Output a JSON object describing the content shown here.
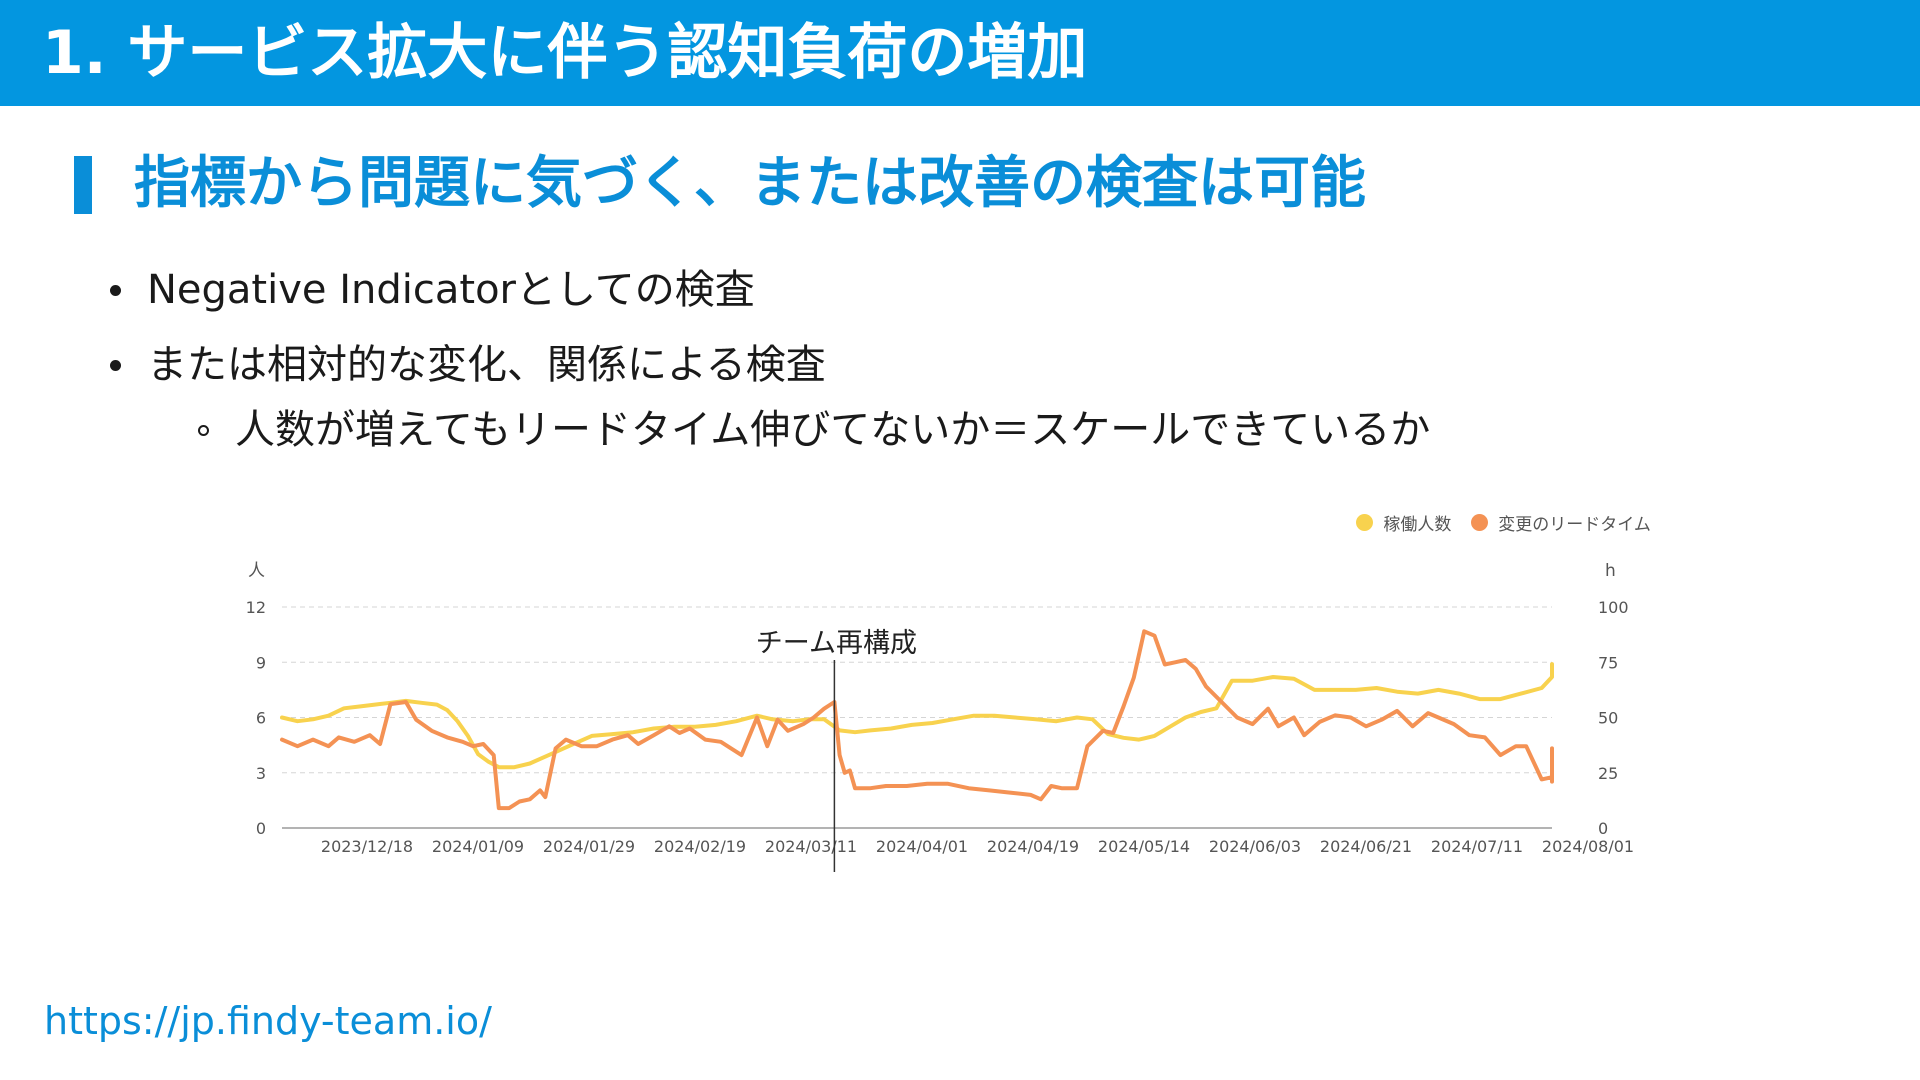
{
  "header": {
    "title": "1. サービス拡大に伴う認知負荷の増加"
  },
  "section": {
    "title": "指標から問題に気づく、または改善の検査は可能"
  },
  "bullets": [
    "Negative Indicatorとしての検査",
    "または相対的な変化、関係による検査"
  ],
  "sub_bullets": [
    "人数が増えてもリードタイム伸びてないか＝スケールできているか"
  ],
  "footer": {
    "url": "https://jp.findy-team.io/"
  },
  "chart_data": {
    "type": "line",
    "title": "",
    "annotation": "チーム再構成",
    "annotation_x": "2024/03/15",
    "x_tick_labels": [
      "2023/12/18",
      "2024/01/09",
      "2024/01/29",
      "2024/02/19",
      "2024/03/11",
      "2024/04/01",
      "2024/04/19",
      "2024/05/14",
      "2024/06/03",
      "2024/06/21",
      "2024/07/11",
      "2024/08/01"
    ],
    "y_left": {
      "unit": "人",
      "ticks": [
        0,
        3,
        6,
        9,
        12
      ],
      "lim": [
        0,
        12
      ]
    },
    "y_right": {
      "unit": "h",
      "ticks": [
        0,
        25,
        50,
        75,
        100
      ],
      "lim": [
        0,
        100
      ]
    },
    "grid": true,
    "legend_position": "top-right",
    "colors": {
      "headcount": "#f8d24e",
      "leadtime": "#f49254",
      "grid": "#d5d5d5",
      "axis_text": "#555555"
    },
    "x_start": "2023/11/29",
    "x_end": "2024/08/01",
    "series": [
      {
        "name": "稼働人数",
        "axis": "left",
        "color": "#f8d24e",
        "points": [
          [
            "2023/11/29",
            6.0
          ],
          [
            "2023/12/02",
            5.8
          ],
          [
            "2023/12/05",
            5.9
          ],
          [
            "2023/12/08",
            6.1
          ],
          [
            "2023/12/11",
            6.5
          ],
          [
            "2023/12/14",
            6.6
          ],
          [
            "2023/12/17",
            6.7
          ],
          [
            "2023/12/20",
            6.8
          ],
          [
            "2023/12/23",
            6.9
          ],
          [
            "2023/12/26",
            6.8
          ],
          [
            "2023/12/29",
            6.7
          ],
          [
            "2023/12/31",
            6.4
          ],
          [
            "2024/01/02",
            5.8
          ],
          [
            "2024/01/04",
            5.0
          ],
          [
            "2024/01/06",
            4.0
          ],
          [
            "2024/01/08",
            3.6
          ],
          [
            "2024/01/10",
            3.3
          ],
          [
            "2024/01/13",
            3.3
          ],
          [
            "2024/01/16",
            3.5
          ],
          [
            "2024/01/20",
            4.0
          ],
          [
            "2024/01/24",
            4.5
          ],
          [
            "2024/01/28",
            5.0
          ],
          [
            "2024/02/01",
            5.1
          ],
          [
            "2024/02/05",
            5.2
          ],
          [
            "2024/02/09",
            5.4
          ],
          [
            "2024/02/13",
            5.5
          ],
          [
            "2024/02/17",
            5.5
          ],
          [
            "2024/02/21",
            5.6
          ],
          [
            "2024/02/25",
            5.8
          ],
          [
            "2024/02/29",
            6.1
          ],
          [
            "2024/03/03",
            5.9
          ],
          [
            "2024/03/07",
            5.8
          ],
          [
            "2024/03/10",
            5.9
          ],
          [
            "2024/03/13",
            5.9
          ],
          [
            "2024/03/16",
            5.3
          ],
          [
            "2024/03/19",
            5.2
          ],
          [
            "2024/03/22",
            5.3
          ],
          [
            "2024/03/26",
            5.4
          ],
          [
            "2024/03/30",
            5.6
          ],
          [
            "2024/04/03",
            5.7
          ],
          [
            "2024/04/07",
            5.9
          ],
          [
            "2024/04/11",
            6.1
          ],
          [
            "2024/04/15",
            6.1
          ],
          [
            "2024/04/19",
            6.0
          ],
          [
            "2024/04/23",
            5.9
          ],
          [
            "2024/04/27",
            5.8
          ],
          [
            "2024/05/01",
            6.0
          ],
          [
            "2024/05/04",
            5.9
          ],
          [
            "2024/05/07",
            5.1
          ],
          [
            "2024/05/10",
            4.9
          ],
          [
            "2024/05/13",
            4.8
          ],
          [
            "2024/05/16",
            5.0
          ],
          [
            "2024/05/19",
            5.5
          ],
          [
            "2024/05/22",
            6.0
          ],
          [
            "2024/05/25",
            6.3
          ],
          [
            "2024/05/28",
            6.5
          ],
          [
            "2024/05/31",
            8.0
          ],
          [
            "2024/06/04",
            8.0
          ],
          [
            "2024/06/08",
            8.2
          ],
          [
            "2024/06/12",
            8.1
          ],
          [
            "2024/06/16",
            7.5
          ],
          [
            "2024/06/20",
            7.5
          ],
          [
            "2024/06/24",
            7.5
          ],
          [
            "2024/06/28",
            7.6
          ],
          [
            "2024/07/02",
            7.4
          ],
          [
            "2024/07/06",
            7.3
          ],
          [
            "2024/07/10",
            7.5
          ],
          [
            "2024/07/14",
            7.3
          ],
          [
            "2024/07/18",
            7.0
          ],
          [
            "2024/07/22",
            7.0
          ],
          [
            "2024/07/26",
            7.3
          ],
          [
            "2024/07/30",
            7.6
          ],
          [
            "2024/08/03",
            8.2
          ],
          [
            "2024/08/07",
            8.3
          ],
          [
            "2024/08/11",
            8.6
          ],
          [
            "2024/08/15",
            8.9
          ]
        ]
      },
      {
        "name": "変更のリードタイム",
        "axis": "right",
        "color": "#f49254",
        "points": [
          [
            "2023/11/29",
            40
          ],
          [
            "2023/12/02",
            37
          ],
          [
            "2023/12/05",
            40
          ],
          [
            "2023/12/08",
            37
          ],
          [
            "2023/12/10",
            41
          ],
          [
            "2023/12/13",
            39
          ],
          [
            "2023/12/16",
            42
          ],
          [
            "2023/12/18",
            38
          ],
          [
            "2023/12/20",
            56
          ],
          [
            "2023/12/23",
            57
          ],
          [
            "2023/12/25",
            49
          ],
          [
            "2023/12/28",
            44
          ],
          [
            "2023/12/31",
            41
          ],
          [
            "2024/01/03",
            39
          ],
          [
            "2024/01/05",
            37
          ],
          [
            "2024/01/07",
            38
          ],
          [
            "2024/01/09",
            33
          ],
          [
            "2024/01/10",
            9
          ],
          [
            "2024/01/12",
            9
          ],
          [
            "2024/01/14",
            12
          ],
          [
            "2024/01/16",
            13
          ],
          [
            "2024/01/18",
            17
          ],
          [
            "2024/01/19",
            14
          ],
          [
            "2024/01/21",
            36
          ],
          [
            "2024/01/23",
            40
          ],
          [
            "2024/01/26",
            37
          ],
          [
            "2024/01/29",
            37
          ],
          [
            "2024/02/01",
            40
          ],
          [
            "2024/02/04",
            42
          ],
          [
            "2024/02/06",
            38
          ],
          [
            "2024/02/09",
            42
          ],
          [
            "2024/02/12",
            46
          ],
          [
            "2024/02/14",
            43
          ],
          [
            "2024/02/16",
            45
          ],
          [
            "2024/02/19",
            40
          ],
          [
            "2024/02/22",
            39
          ],
          [
            "2024/02/24",
            36
          ],
          [
            "2024/02/26",
            33
          ],
          [
            "2024/02/29",
            50
          ],
          [
            "2024/03/02",
            37
          ],
          [
            "2024/03/04",
            49
          ],
          [
            "2024/03/06",
            44
          ],
          [
            "2024/03/09",
            47
          ],
          [
            "2024/03/11",
            50
          ],
          [
            "2024/03/13",
            54
          ],
          [
            "2024/03/15",
            57
          ],
          [
            "2024/03/16",
            33
          ],
          [
            "2024/03/17",
            25
          ],
          [
            "2024/03/18",
            26
          ],
          [
            "2024/03/19",
            18
          ],
          [
            "2024/03/22",
            18
          ],
          [
            "2024/03/25",
            19
          ],
          [
            "2024/03/29",
            19
          ],
          [
            "2024/04/02",
            20
          ],
          [
            "2024/04/06",
            20
          ],
          [
            "2024/04/10",
            18
          ],
          [
            "2024/04/14",
            17
          ],
          [
            "2024/04/18",
            16
          ],
          [
            "2024/04/22",
            15
          ],
          [
            "2024/04/24",
            13
          ],
          [
            "2024/04/26",
            19
          ],
          [
            "2024/04/28",
            18
          ],
          [
            "2024/05/01",
            18
          ],
          [
            "2024/05/03",
            37
          ],
          [
            "2024/05/06",
            44
          ],
          [
            "2024/05/08",
            43
          ],
          [
            "2024/05/10",
            55
          ],
          [
            "2024/05/12",
            68
          ],
          [
            "2024/05/14",
            89
          ],
          [
            "2024/05/16",
            87
          ],
          [
            "2024/05/18",
            74
          ],
          [
            "2024/05/20",
            75
          ],
          [
            "2024/05/22",
            76
          ],
          [
            "2024/05/24",
            72
          ],
          [
            "2024/05/26",
            64
          ],
          [
            "2024/05/29",
            57
          ],
          [
            "2024/06/01",
            50
          ],
          [
            "2024/06/04",
            47
          ],
          [
            "2024/06/07",
            54
          ],
          [
            "2024/06/09",
            46
          ],
          [
            "2024/06/12",
            50
          ],
          [
            "2024/06/14",
            42
          ],
          [
            "2024/06/17",
            48
          ],
          [
            "2024/06/20",
            51
          ],
          [
            "2024/06/23",
            50
          ],
          [
            "2024/06/26",
            46
          ],
          [
            "2024/06/29",
            49
          ],
          [
            "2024/07/02",
            53
          ],
          [
            "2024/07/05",
            46
          ],
          [
            "2024/07/08",
            52
          ],
          [
            "2024/07/10",
            50
          ],
          [
            "2024/07/13",
            47
          ],
          [
            "2024/07/16",
            42
          ],
          [
            "2024/07/19",
            41
          ],
          [
            "2024/07/22",
            33
          ],
          [
            "2024/07/25",
            37
          ],
          [
            "2024/07/27",
            37
          ],
          [
            "2024/07/30",
            22
          ],
          [
            "2024/08/02",
            23
          ],
          [
            "2024/08/04",
            21
          ],
          [
            "2024/08/06",
            23
          ],
          [
            "2024/08/09",
            23
          ],
          [
            "2024/08/11",
            24
          ],
          [
            "2024/08/13",
            35
          ],
          [
            "2024/08/15",
            36
          ],
          [
            "2024/08/17",
            35
          ],
          [
            "2024/08/19",
            28
          ],
          [
            "2024/08/21",
            24
          ],
          [
            "2024/08/23",
            24
          ]
        ]
      }
    ]
  }
}
